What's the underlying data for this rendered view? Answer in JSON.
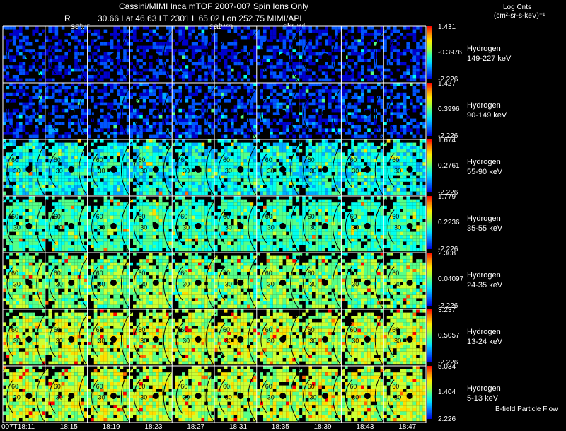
{
  "header": {
    "line1": "Cassini/MIMI Inca mTOF  2007-007   Spin   Ions Only",
    "r_label": "R",
    "line2": "30.66 Lat 46.63 LT 2301 L       65.02 Lon       252.75  MIMI/APL",
    "planet_markers": [
      "satur",
      "saturn",
      "skr-wl"
    ]
  },
  "units": {
    "title": "Log Cnts",
    "subtitle": "(cm²-sr-s-keV)⁻¹"
  },
  "footer": {
    "bfield_label": "B-field Particle Flow"
  },
  "chart_data": {
    "type": "heatmap",
    "title": "Cassini/MIMI Inca mTOF  2007-007   Spin   Ions Only",
    "time_labels": [
      "007T18:11",
      "18:15",
      "18:19",
      "18:23",
      "18:27",
      "18:31",
      "18:35",
      "18:39",
      "18:43",
      "18:47"
    ],
    "contour_labels": [
      "60",
      "30"
    ],
    "color_scale": [
      "#0000cc",
      "#0055ff",
      "#00aaff",
      "#00ffee",
      "#55ff88",
      "#ccff33",
      "#ffdd00",
      "#ff6600",
      "#ff0000"
    ],
    "rows": [
      {
        "species": "Hydrogen",
        "energy": "149-227 keV",
        "cmax": "1.431",
        "cmid": "-0.3976",
        "cmin": "-2.226",
        "mean_level": 0.1,
        "spread": 0.1
      },
      {
        "species": "Hydrogen",
        "energy": "90-149 keV",
        "cmax": "1.427",
        "cmid": "0.3996",
        "cmin": "-2.226",
        "mean_level": 0.14,
        "spread": 0.1
      },
      {
        "species": "Hydrogen",
        "energy": "55-90 keV",
        "cmax": "1.674",
        "cmid": "0.2761",
        "cmin": "-2.226",
        "mean_level": 0.36,
        "spread": 0.11
      },
      {
        "species": "Hydrogen",
        "energy": "35-55 keV",
        "cmax": "1.779",
        "cmid": "0.2236",
        "cmin": "-2.226",
        "mean_level": 0.43,
        "spread": 0.1
      },
      {
        "species": "Hydrogen",
        "energy": "24-35 keV",
        "cmax": "2.308",
        "cmid": "0.04097",
        "cmin": "-2.226",
        "mean_level": 0.5,
        "spread": 0.11
      },
      {
        "species": "Hydrogen",
        "energy": "13-24 keV",
        "cmax": "3.237",
        "cmid": "0.5057",
        "cmin": "-2.226",
        "mean_level": 0.56,
        "spread": 0.11
      },
      {
        "species": "Hydrogen",
        "energy": "5-13 keV",
        "cmax": "5.034",
        "cmid": "1.404",
        "cmin": "2.226",
        "mean_level": 0.57,
        "spread": 0.11
      }
    ]
  }
}
